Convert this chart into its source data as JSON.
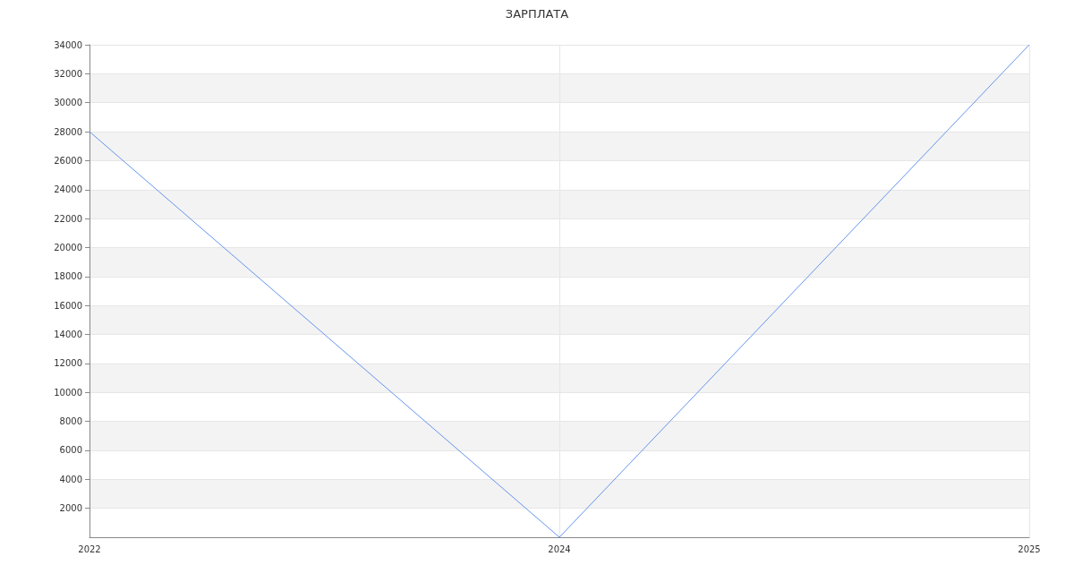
{
  "chart_data": {
    "type": "line",
    "title": "ЗАРПЛАТА",
    "categories": [
      "2022",
      "2024",
      "2025"
    ],
    "series": [
      {
        "color": "#6495ed",
        "values": [
          28000,
          0,
          34000
        ]
      }
    ],
    "ylim": [
      0,
      34000
    ],
    "yticks": [
      2000,
      4000,
      6000,
      8000,
      10000,
      12000,
      14000,
      16000,
      18000,
      20000,
      22000,
      24000,
      26000,
      28000,
      30000,
      32000,
      34000
    ],
    "grid": true,
    "marker": "none",
    "line_style": "solid"
  }
}
